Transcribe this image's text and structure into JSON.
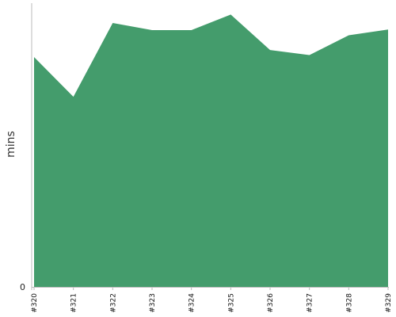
{
  "chart_data": {
    "type": "area",
    "title": "",
    "xlabel": "",
    "ylabel": "mins",
    "categories": [
      "#320",
      "#321",
      "#322",
      "#323",
      "#324",
      "#325",
      "#326",
      "#327",
      "#328",
      "#329"
    ],
    "series": [
      {
        "values": [
          81,
          67,
          93,
          90.5,
          90.5,
          96,
          83.5,
          81.7,
          88.7,
          90.7
        ]
      }
    ],
    "y_ticks": [
      {
        "value": 0,
        "label": "0"
      }
    ],
    "ylim": [
      0,
      100
    ],
    "grid": false,
    "legend": "none",
    "colors": {
      "area": "#449c6c",
      "axis": "#bbbbbb"
    }
  }
}
